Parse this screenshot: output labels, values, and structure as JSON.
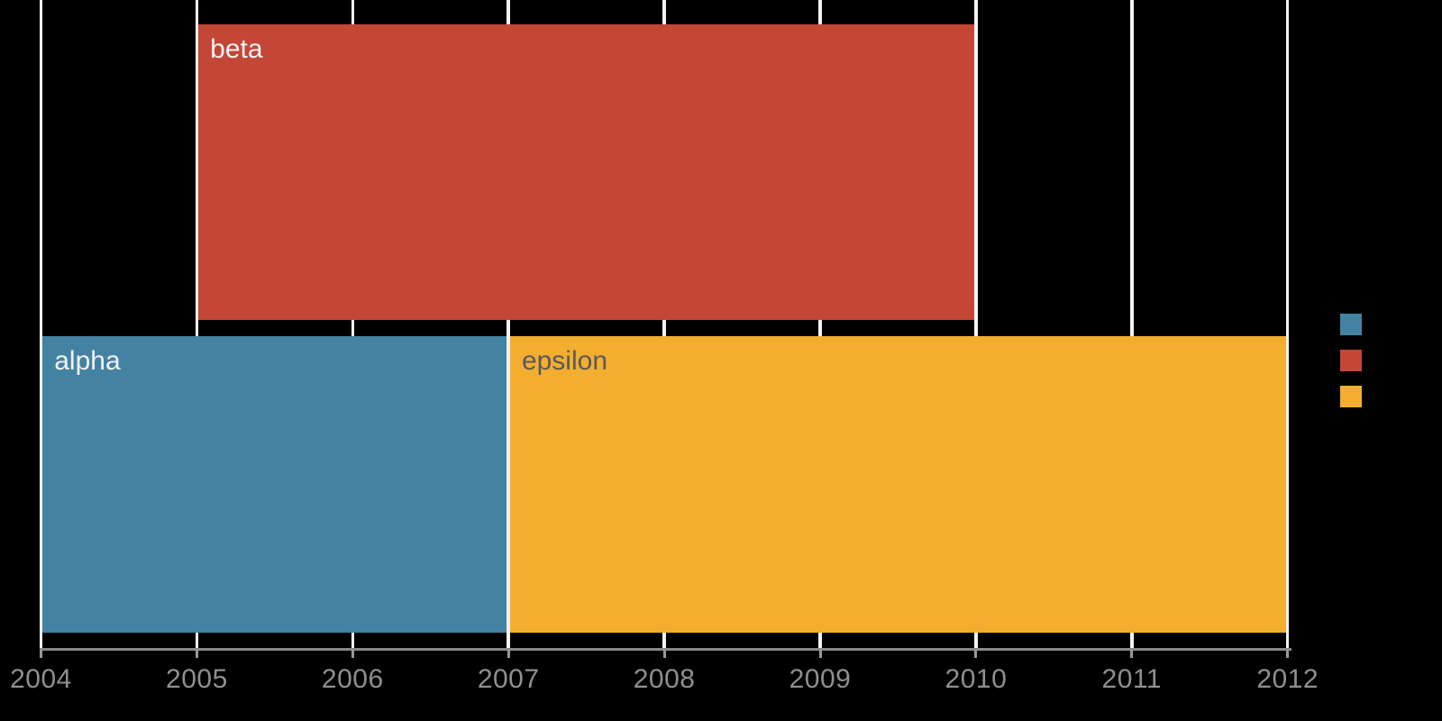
{
  "chart_data": {
    "type": "bar",
    "subtype": "gantt-timeline",
    "orientation": "horizontal",
    "title": "",
    "xlabel": "",
    "ylabel": "",
    "x_axis": {
      "tick_labels": [
        "2004",
        "2005",
        "2006",
        "2007",
        "2008",
        "2009",
        "2010",
        "2011",
        "2012"
      ],
      "tick_values": [
        2004,
        2005,
        2006,
        2007,
        2008,
        2009,
        2010,
        2011,
        2012
      ],
      "range": [
        2004,
        2012
      ],
      "grid": true
    },
    "tasks": [
      {
        "name": "beta",
        "label": "beta",
        "start": 2005,
        "end": 2010,
        "row": 0,
        "bar_color": "#c44637",
        "label_color": "#f2f2f2"
      },
      {
        "name": "alpha",
        "label": "alpha",
        "start": 2004,
        "end": 2007,
        "row": 1,
        "bar_color": "#4382a3",
        "label_color": "#f2f2f2"
      },
      {
        "name": "epsilon",
        "label": "epsilon",
        "start": 2007,
        "end": 2012,
        "row": 1,
        "bar_color": "#f4ae2f",
        "label_color": "#595959"
      }
    ],
    "legend": {
      "position": "right",
      "swatches": [
        {
          "name": "legend-swatch-1",
          "color": "#4382a3"
        },
        {
          "name": "legend-swatch-2",
          "color": "#c44637"
        },
        {
          "name": "legend-swatch-3",
          "color": "#f4ae2f"
        }
      ]
    },
    "colors": {
      "background": "#000000",
      "gridline": "#f2f2f2",
      "axis_line": "#888888",
      "tick": "#999999",
      "tick_label": "#8f8f8f"
    }
  }
}
